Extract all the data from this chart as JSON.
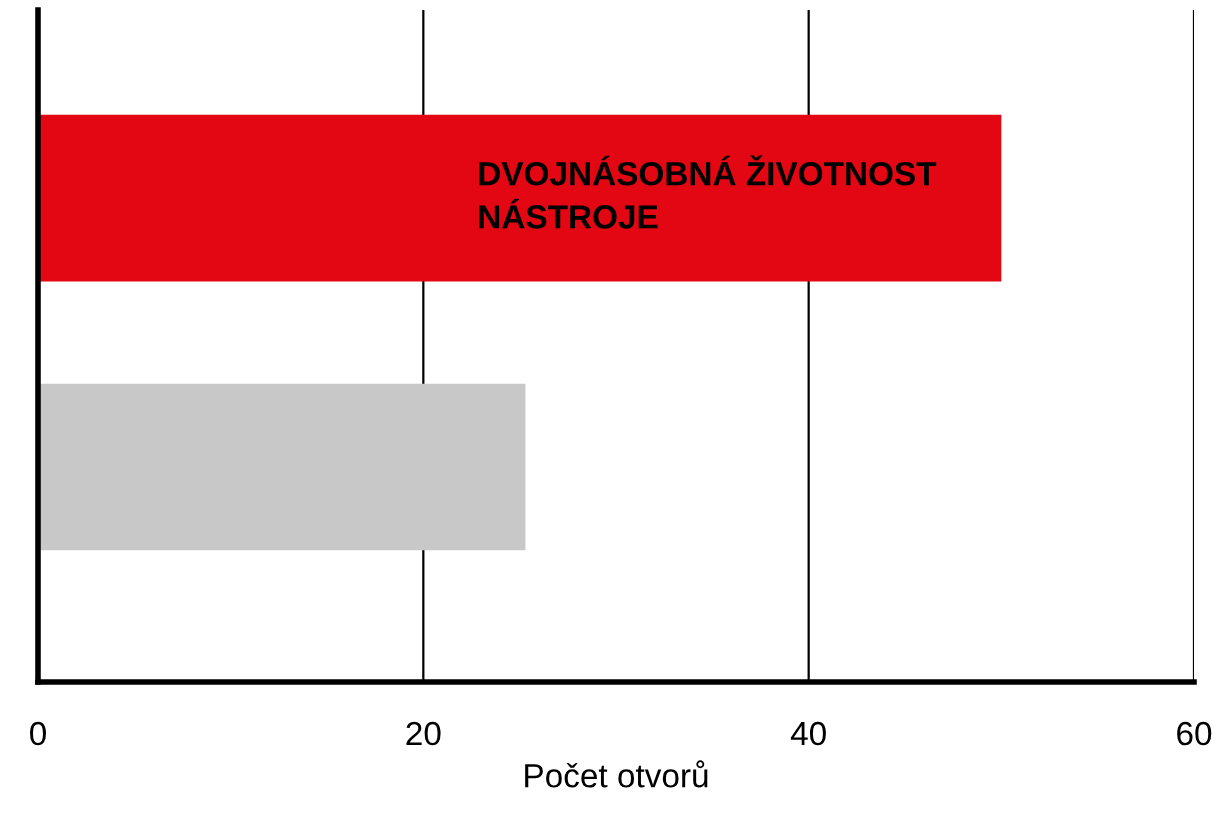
{
  "chart_data": {
    "type": "bar",
    "orientation": "horizontal",
    "categories": [
      null,
      null
    ],
    "values": [
      50,
      25.3
    ],
    "colors": [
      "#e30613",
      "#c8c8c8"
    ],
    "xlabel": "Počet otvorů",
    "xlim": [
      0,
      60
    ],
    "xticks": [
      0,
      20,
      40,
      60
    ],
    "grid": "x",
    "tick_labels": "x",
    "annotations": [
      "DVOJNÁSOBNÁ ŽIVOTNOST\nNÁSTROJE"
    ]
  }
}
